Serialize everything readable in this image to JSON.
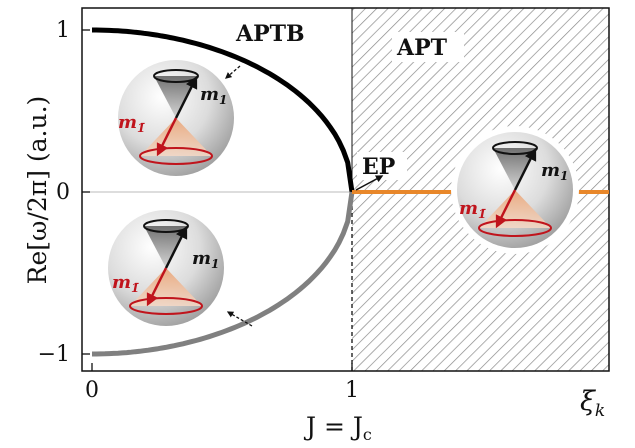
{
  "figure": {
    "y_axis_label": "Re[ω/2π] (a.u.)",
    "x_axis_caption": "J = J",
    "x_axis_caption_sub": "c",
    "x_axis_var": "ξ",
    "x_axis_var_sub": "k",
    "region_left_label": "APTB",
    "region_right_label": "APT",
    "ep_label": "EP",
    "sphere_label_m1": "m",
    "sphere_label_m1_sub": "1",
    "sphere_label_mbar": "m",
    "sphere_label_mbar_sub": "1̄"
  },
  "chart_data": {
    "type": "line",
    "x_ticks": [
      "0",
      "1"
    ],
    "y_ticks": [
      "1",
      "0",
      "−1"
    ],
    "xlim": [
      0,
      1.95
    ],
    "ylim": [
      -1.1,
      1.1
    ],
    "shaded_region_x": [
      1,
      1.95
    ],
    "ep_point": [
      1,
      0
    ],
    "series": [
      {
        "role": "upper branch",
        "color": "#000000",
        "x": [
          0,
          0.2,
          0.4,
          0.6,
          0.8,
          0.9,
          0.95,
          0.99,
          1.0
        ],
        "y": [
          1,
          0.98,
          0.917,
          0.8,
          0.6,
          0.436,
          0.312,
          0.141,
          0
        ]
      },
      {
        "role": "lower branch",
        "color": "#808080",
        "x": [
          0,
          0.2,
          0.4,
          0.6,
          0.8,
          0.9,
          0.95,
          0.99,
          1.0
        ],
        "y": [
          -1,
          -0.98,
          -0.917,
          -0.8,
          -0.6,
          -0.436,
          -0.312,
          -0.141,
          0
        ]
      },
      {
        "role": "APT zero line",
        "color": "#E8872A",
        "x": [
          1,
          1.95
        ],
        "y": [
          0,
          0
        ]
      }
    ]
  },
  "colors": {
    "red": "#C0141C",
    "orange": "#E8872A",
    "grey_branch": "#808080"
  }
}
